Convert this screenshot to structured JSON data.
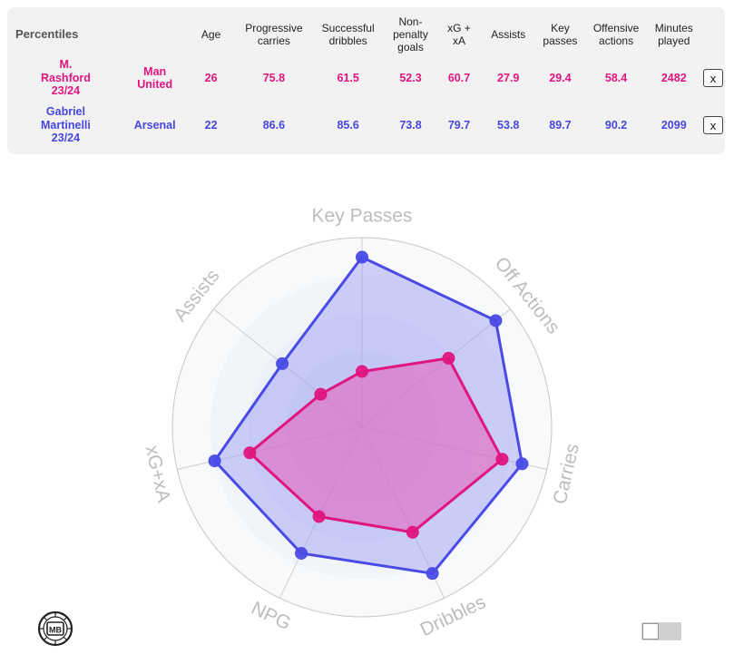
{
  "table": {
    "corner_label": "Percentiles",
    "headers": [
      [
        "Age"
      ],
      [
        "Progressive",
        "carries"
      ],
      [
        "Successful",
        "dribbles"
      ],
      [
        "Non-",
        "penalty",
        "goals"
      ],
      [
        "xG +",
        "xA"
      ],
      [
        "Assists"
      ],
      [
        "Key",
        "passes"
      ],
      [
        "Offensive",
        "actions"
      ],
      [
        "Minutes",
        "played"
      ]
    ],
    "rows": [
      {
        "player_lines": [
          "M.",
          "Rashford",
          "23/24"
        ],
        "team_lines": [
          "Man",
          "United"
        ],
        "values": [
          "26",
          "75.8",
          "61.5",
          "52.3",
          "60.7",
          "27.9",
          "29.4",
          "58.4",
          "2482"
        ],
        "remove_label": "x"
      },
      {
        "player_lines": [
          "Gabriel",
          "Martinelli",
          "23/24"
        ],
        "team_lines": [
          "Arsenal"
        ],
        "values": [
          "22",
          "86.6",
          "85.6",
          "73.8",
          "79.7",
          "53.8",
          "89.7",
          "90.2",
          "2099"
        ],
        "remove_label": "x"
      }
    ]
  },
  "chart_data": {
    "type": "radar",
    "rmax": 100,
    "axes": [
      "Key Passes",
      "Off Actions",
      "Carries",
      "Dribbles",
      "NPG",
      "xG+xA",
      "Assists"
    ],
    "series": [
      {
        "name": "M. Rashford 23/24",
        "color": "#e0157f",
        "fill": "#e85bb8",
        "values": [
          29.4,
          58.4,
          75.8,
          61.5,
          52.3,
          60.7,
          27.9
        ]
      },
      {
        "name": "Gabriel Martinelli 23/24",
        "color": "#4a4ae6",
        "fill": "#8f8ff5",
        "values": [
          89.7,
          90.2,
          86.6,
          85.6,
          73.8,
          79.7,
          53.8
        ]
      }
    ]
  },
  "logo_text": "MB"
}
